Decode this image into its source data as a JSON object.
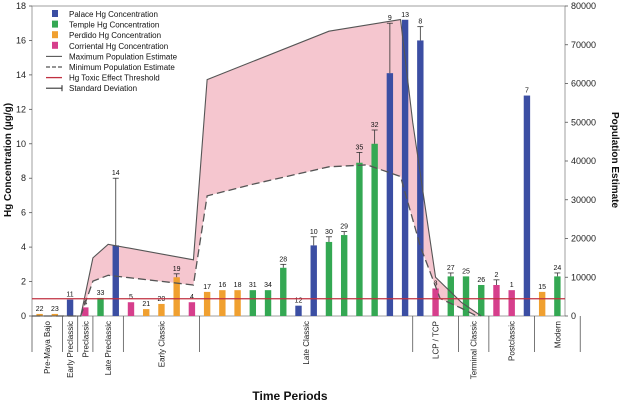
{
  "chart_data": {
    "type": "bar",
    "title": "",
    "xlabel": "Time Periods",
    "ylabel": "Hg Concentration (µg/g)",
    "y2label": "Population Estimate",
    "ylim": [
      0,
      18
    ],
    "y2lim": [
      0,
      80000
    ],
    "yticks": [
      0,
      2,
      4,
      6,
      8,
      10,
      12,
      14,
      16,
      18
    ],
    "y2ticks": [
      "0",
      "10000",
      "20000",
      "30000",
      "40000",
      "50000",
      "60000",
      "70000",
      "80000"
    ],
    "threshold": 1.0,
    "colors": {
      "Palace": "#3b4ea3",
      "Temple": "#34a853",
      "Perdido": "#f0a030",
      "Corriental": "#d63f8c",
      "band": "#f5c6cf",
      "max_line": "#555555",
      "min_line": "#555555",
      "threshold": "#c03040",
      "sd": "#333333"
    },
    "legend": {
      "placement": "top-left",
      "entries": [
        {
          "label": "Palace Hg Concentration",
          "kind": "bar",
          "color": "Palace"
        },
        {
          "label": "Temple Hg Concentration",
          "kind": "bar",
          "color": "Temple"
        },
        {
          "label": "Perdido Hg Concentration",
          "kind": "bar",
          "color": "Perdido"
        },
        {
          "label": "Corriental Hg Concentration",
          "kind": "bar",
          "color": "Corriental"
        },
        {
          "label": "Maximum Population Estimate",
          "kind": "solid",
          "color": "max_line"
        },
        {
          "label": "Minimum Population Estimate",
          "kind": "dashed",
          "color": "min_line"
        },
        {
          "label": "Hg Toxic Effect Threshold",
          "kind": "threshold",
          "color": "threshold"
        },
        {
          "label": "Standard Deviation",
          "kind": "sd",
          "color": "sd"
        }
      ]
    },
    "periods": [
      {
        "name": "Pre-Maya Bajo",
        "start": 0,
        "end": 2
      },
      {
        "name": "Early Preclassic",
        "start": 2,
        "end": 3
      },
      {
        "name": "Preclassic",
        "start": 3,
        "end": 4
      },
      {
        "name": "Late Preclassic",
        "start": 4,
        "end": 6
      },
      {
        "name": "Early Classic",
        "start": 6,
        "end": 11
      },
      {
        "name": "Late Classic",
        "start": 11,
        "end": 25
      },
      {
        "name": "LCP / TCP",
        "start": 25,
        "end": 28
      },
      {
        "name": "Terminal Classic",
        "start": 28,
        "end": 30
      },
      {
        "name": "Postclassic",
        "start": 30,
        "end": 33
      },
      {
        "name": "Modern",
        "start": 33,
        "end": 36
      }
    ],
    "bars": [
      {
        "series": "Perdido",
        "value": 0.12,
        "label": "22"
      },
      {
        "series": "Perdido",
        "value": 0.12,
        "label": "23"
      },
      {
        "series": "Palace",
        "value": 0.95,
        "label": "11"
      },
      {
        "series": "Corriental",
        "value": 0.5,
        "label": "4"
      },
      {
        "series": "Temple",
        "value": 1.05,
        "label": "33"
      },
      {
        "series": "Palace",
        "value": 4.1,
        "label": "14",
        "sd": 3.9
      },
      {
        "series": "Corriental",
        "value": 0.8,
        "label": "5"
      },
      {
        "series": "Perdido",
        "value": 0.4,
        "label": "21"
      },
      {
        "series": "Perdido",
        "value": 0.7,
        "label": "20"
      },
      {
        "series": "Perdido",
        "value": 2.25,
        "label": "19",
        "sd": 0.2
      },
      {
        "series": "Corriental",
        "value": 0.8,
        "label": "4"
      },
      {
        "series": "Perdido",
        "value": 1.4,
        "label": "17"
      },
      {
        "series": "Perdido",
        "value": 1.5,
        "label": "16"
      },
      {
        "series": "Perdido",
        "value": 1.5,
        "label": "18"
      },
      {
        "series": "Temple",
        "value": 1.5,
        "label": "31"
      },
      {
        "series": "Temple",
        "value": 1.5,
        "label": "34"
      },
      {
        "series": "Temple",
        "value": 2.8,
        "label": "28",
        "sd": 0.2
      },
      {
        "series": "Palace",
        "value": 0.6,
        "label": "12"
      },
      {
        "series": "Palace",
        "value": 4.1,
        "label": "10",
        "sd": 0.5
      },
      {
        "series": "Temple",
        "value": 4.3,
        "label": "30",
        "sd": 0.3
      },
      {
        "series": "Temple",
        "value": 4.7,
        "label": "29",
        "sd": 0.2
      },
      {
        "series": "Temple",
        "value": 8.9,
        "label": "35",
        "sd": 0.6
      },
      {
        "series": "Temple",
        "value": 10.0,
        "label": "32",
        "sd": 0.8
      },
      {
        "series": "Palace",
        "value": 14.1,
        "label": "9",
        "sd": 2.9
      },
      {
        "series": "Palace",
        "value": 17.2,
        "label": "13"
      },
      {
        "series": "Palace",
        "value": 16.0,
        "label": "8",
        "sd": 0.8
      },
      {
        "series": "Corriental",
        "value": 1.6,
        "label": "3"
      },
      {
        "series": "Temple",
        "value": 2.3,
        "label": "27",
        "sd": 0.2
      },
      {
        "series": "Temple",
        "value": 2.3,
        "label": "25"
      },
      {
        "series": "Temple",
        "value": 1.8,
        "label": "26"
      },
      {
        "series": "Corriental",
        "value": 1.8,
        "label": "2",
        "sd": 0.3
      },
      {
        "series": "Corriental",
        "value": 1.5,
        "label": "1"
      },
      {
        "series": "Palace",
        "value": 12.8,
        "label": "7"
      },
      {
        "series": "Perdido",
        "value": 1.4,
        "label": "15"
      },
      {
        "series": "Temple",
        "value": 2.3,
        "label": "24",
        "sd": 0.2
      }
    ],
    "max_population": [
      {
        "x": 0,
        "y": 0
      },
      {
        "x": 3.2,
        "y": 0
      },
      {
        "x": 4.0,
        "y": 15000
      },
      {
        "x": 5.0,
        "y": 18500
      },
      {
        "x": 10.6,
        "y": 14500
      },
      {
        "x": 11.5,
        "y": 61000
      },
      {
        "x": 19.5,
        "y": 73500
      },
      {
        "x": 24.2,
        "y": 76500
      },
      {
        "x": 25.0,
        "y": 50000
      },
      {
        "x": 26.5,
        "y": 10000
      },
      {
        "x": 28.2,
        "y": 3500
      },
      {
        "x": 29.5,
        "y": 0
      }
    ],
    "min_population": [
      {
        "x": 0,
        "y": 0
      },
      {
        "x": 3.2,
        "y": 0
      },
      {
        "x": 4.0,
        "y": 9000
      },
      {
        "x": 5.0,
        "y": 10500
      },
      {
        "x": 10.6,
        "y": 8000
      },
      {
        "x": 11.5,
        "y": 31000
      },
      {
        "x": 14.5,
        "y": 34000
      },
      {
        "x": 19.5,
        "y": 38500
      },
      {
        "x": 22.0,
        "y": 39000
      },
      {
        "x": 24.2,
        "y": 36000
      },
      {
        "x": 25.5,
        "y": 18000
      },
      {
        "x": 26.8,
        "y": 4500
      },
      {
        "x": 28.2,
        "y": 2000
      },
      {
        "x": 29.2,
        "y": 0
      }
    ]
  }
}
